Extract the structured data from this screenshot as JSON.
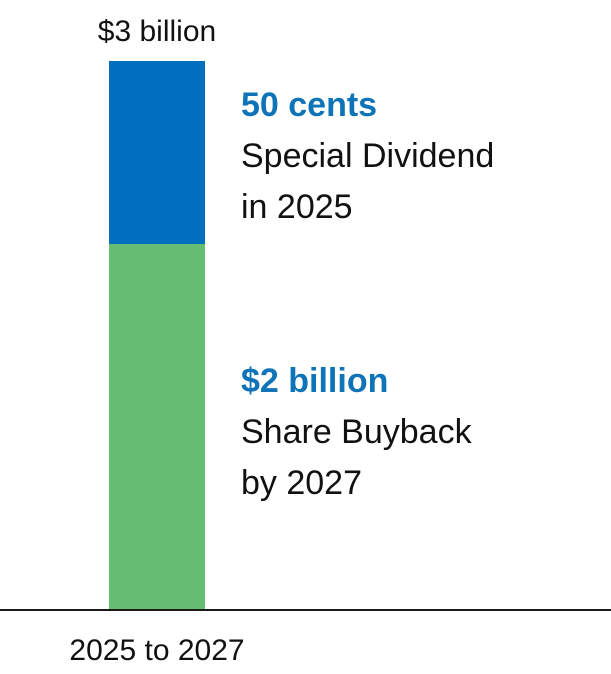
{
  "chart_data": {
    "type": "bar",
    "stacked": true,
    "categories": [
      "2025 to 2027"
    ],
    "total_label": "$3 billion",
    "total_value": 3,
    "ylim": [
      0,
      3
    ],
    "grid": false,
    "series": [
      {
        "name": "Share Buyback",
        "value": 2,
        "value_label": "$2 billion",
        "description_lines": [
          "Share Buyback",
          "by 2027"
        ],
        "color": "#65BD71"
      },
      {
        "name": "Special Dividend",
        "value": 1,
        "value_label": "50 cents",
        "description_lines": [
          "Special Dividend",
          "in 2025"
        ],
        "color": "#0070BE"
      }
    ],
    "label_value_color": "#0F73B7",
    "axis_color": "#1a1a1a"
  }
}
